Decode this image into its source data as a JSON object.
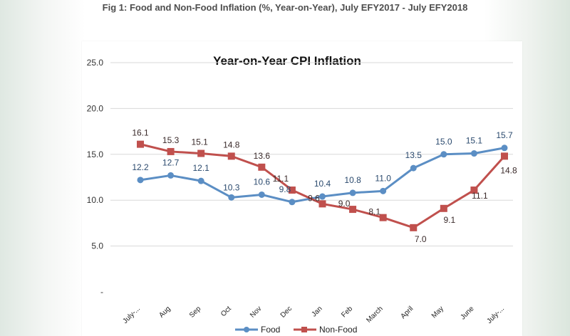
{
  "figure": {
    "caption": "Fig 1: Food and Non-Food Inflation (%, Year-on-Year), July EFY2017 - July EFY2018"
  },
  "colors": {
    "food": "#5b8ec4",
    "nonfood": "#c0504d"
  },
  "chart_data": {
    "type": "line",
    "title": "Year-on-Year CPI Inflation",
    "xlabel": "",
    "ylabel": "",
    "categories": [
      "July-...",
      "Aug",
      "Sep",
      "Oct",
      "Nov",
      "Dec",
      "Jan",
      "Feb",
      "March",
      "April",
      "May",
      "June",
      "July-..."
    ],
    "yticks": [
      "25.0",
      "20.0",
      "15.0",
      "10.0",
      "5.0",
      "-"
    ],
    "ylim": [
      0,
      25
    ],
    "grid": true,
    "legend": "bottom",
    "series": [
      {
        "name": "Food",
        "values": [
          12.2,
          12.7,
          12.1,
          10.3,
          10.6,
          9.8,
          10.4,
          10.8,
          11.0,
          13.5,
          15.0,
          15.1,
          15.7
        ],
        "labels": [
          "12.2",
          "12.7",
          "12.1",
          "10.3",
          "10.6",
          "9.8",
          "10.4",
          "10.8",
          "11.0",
          "13.5",
          "15.0",
          "15.1",
          "15.7"
        ]
      },
      {
        "name": "Non-Food",
        "values": [
          16.1,
          15.3,
          15.1,
          14.8,
          13.6,
          11.1,
          9.6,
          9.0,
          8.1,
          7.0,
          9.1,
          11.1,
          14.8
        ],
        "labels": [
          "16.1",
          "15.3",
          "15.1",
          "14.8",
          "13.6",
          "11.1",
          "9.6",
          "9.0",
          "8.1",
          "7.0",
          "9.1",
          "11.1",
          "14.8"
        ]
      }
    ]
  }
}
